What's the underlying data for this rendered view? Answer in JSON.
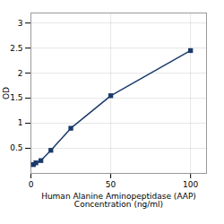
{
  "chart_data": {
    "type": "line",
    "x": [
      1.563,
      3.125,
      6.25,
      12.5,
      25,
      50,
      100
    ],
    "values": [
      0.175,
      0.21,
      0.255,
      0.46,
      0.9,
      1.55,
      2.45
    ],
    "color": "#1a3a6a",
    "marker": "square",
    "xlabel": "Human Alanine Aminopeptidase (AAP)\nConcentration (ng/ml)",
    "ylabel": "OD",
    "xlim": [
      0,
      110
    ],
    "ylim": [
      0,
      3.2
    ],
    "xticks": [
      0,
      50,
      100
    ],
    "yticks": [
      0.5,
      1,
      1.5,
      2,
      2.5,
      3
    ],
    "grid": true
  }
}
